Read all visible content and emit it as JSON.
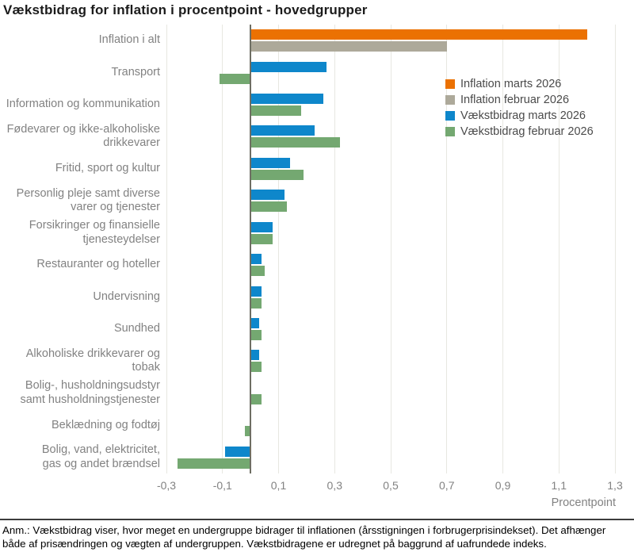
{
  "title": "Vækstbidrag for inflation i procentpoint - hovedgrupper",
  "legend": {
    "items": [
      {
        "label": "Inflation marts 2026",
        "color": "#EB7102"
      },
      {
        "label": "Inflation februar 2026",
        "color": "#ADA99A"
      },
      {
        "label": "Vækstbidrag marts 2026",
        "color": "#0E87CB"
      },
      {
        "label": "Vækstbidrag februar 2026",
        "color": "#74A871"
      }
    ]
  },
  "chart_data": {
    "type": "bar",
    "orientation": "horizontal",
    "title": "Vækstbidrag for inflation i procentpoint - hovedgrupper",
    "xlabel": "Procentpoint",
    "xlim": [
      -0.3,
      1.3
    ],
    "xticks": [
      -0.3,
      -0.1,
      0.1,
      0.3,
      0.5,
      0.7,
      0.9,
      1.1,
      1.3
    ],
    "xtick_labels": [
      "-0,3",
      "-0,1",
      "0,1",
      "0,3",
      "0,5",
      "0,7",
      "0,9",
      "1,1",
      "1,3"
    ],
    "grid": true,
    "legend_position": "inside-upper-right",
    "categories": [
      "Inflation i alt",
      "Transport",
      "Information og kommunikation",
      "Fødevarer og ikke-alkoholiske\ndrikkevarer",
      "Fritid, sport og kultur",
      "Personlig pleje samt diverse\nvarer og tjenester",
      "Forsikringer og finansielle\ntjenesteydelser",
      "Restauranter og hoteller",
      "Undervisning",
      "Sundhed",
      "Alkoholiske drikkevarer og\ntobak",
      "Bolig-, husholdningsudstyr\nsamt husholdningstjenester",
      "Beklædning og fodtøj",
      "Bolig, vand, elektricitet,\ngas og andet brændsel"
    ],
    "series": [
      {
        "name": "Inflation marts 2026",
        "color": "#EB7102",
        "values": [
          1.2,
          null,
          null,
          null,
          null,
          null,
          null,
          null,
          null,
          null,
          null,
          null,
          null,
          null
        ]
      },
      {
        "name": "Inflation februar 2026",
        "color": "#ADA99A",
        "values": [
          0.7,
          null,
          null,
          null,
          null,
          null,
          null,
          null,
          null,
          null,
          null,
          null,
          null,
          null
        ]
      },
      {
        "name": "Vækstbidrag marts 2026",
        "color": "#0E87CB",
        "values": [
          null,
          0.27,
          0.26,
          0.23,
          0.14,
          0.12,
          0.08,
          0.04,
          0.04,
          0.03,
          0.03,
          0.0,
          0.0,
          -0.09
        ]
      },
      {
        "name": "Vækstbidrag februar 2026",
        "color": "#74A871",
        "values": [
          null,
          -0.11,
          0.18,
          0.32,
          0.19,
          0.13,
          0.08,
          0.05,
          0.04,
          0.04,
          0.04,
          0.04,
          -0.02,
          -0.26
        ]
      }
    ]
  },
  "footnote": "Anm.: Vækstbidrag viser, hvor meget en undergruppe bidrager til inflationen (årsstigningen i forbrugerprisindekset). Det afhænger både af prisændringen og vægten af undergruppen. Vækstbidragene er udregnet på baggrund af uafrundede indeks."
}
